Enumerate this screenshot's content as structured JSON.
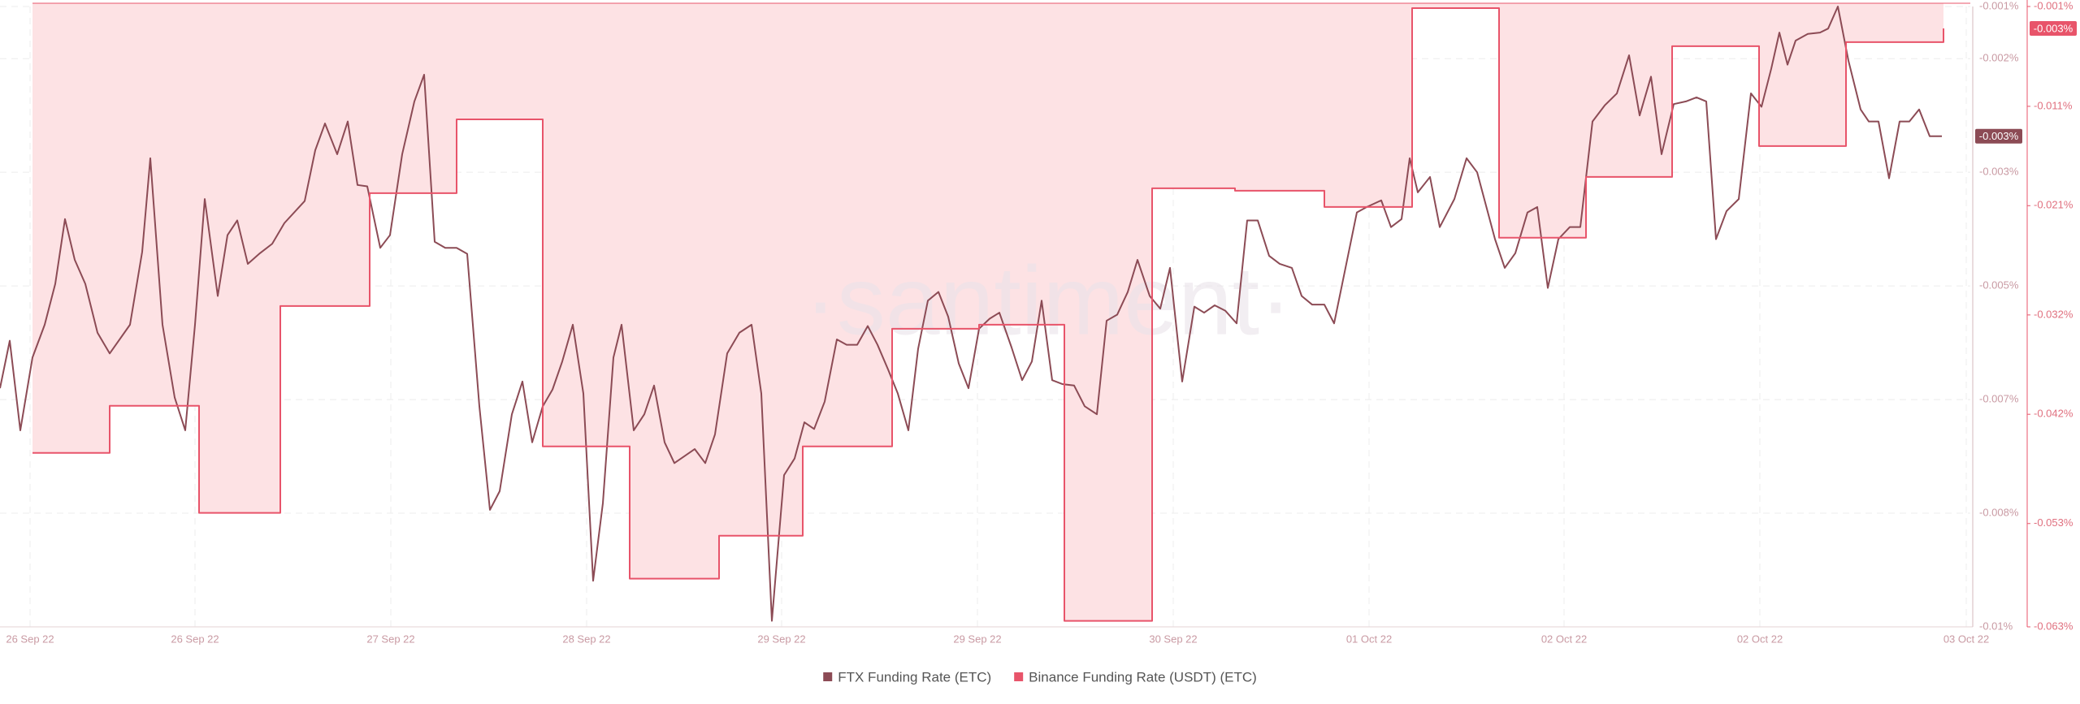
{
  "chart_data": {
    "type": "line",
    "watermark": "·santiment·",
    "xlim": [
      0,
      121.25
    ],
    "xticks": [
      {
        "value": 1.85,
        "label": "26 Sep 22"
      },
      {
        "value": 12,
        "label": "26 Sep 22"
      },
      {
        "value": 24.05,
        "label": "27 Sep 22"
      },
      {
        "value": 36.1,
        "label": "28 Sep 22"
      },
      {
        "value": 48.1,
        "label": "29 Sep 22"
      },
      {
        "value": 60.15,
        "label": "29 Sep 22"
      },
      {
        "value": 72.2,
        "label": "30 Sep 22"
      },
      {
        "value": 84.25,
        "label": "01 Oct 22"
      },
      {
        "value": 96.25,
        "label": "02 Oct 22"
      },
      {
        "value": 108.3,
        "label": "02 Oct 22"
      },
      {
        "value": 121,
        "label": "03 Oct 22"
      }
    ],
    "ylim": [
      -0.01,
      -0.00072
    ],
    "yticks": [
      {
        "value": -0.01,
        "label": "-0.01%"
      },
      {
        "value": -0.0083,
        "label": "-0.008%"
      },
      {
        "value": -0.0066,
        "label": "-0.007%"
      },
      {
        "value": -0.0049,
        "label": "-0.005%"
      },
      {
        "value": -0.0032,
        "label": "-0.003%"
      },
      {
        "value": -0.0015,
        "label": "-0.002%"
      },
      {
        "value": -0.00072,
        "label": "-0.001%"
      }
    ],
    "y2lim": [
      -0.0634,
      -0.00095
    ],
    "y2ticks": [
      {
        "value": -0.0634,
        "label": "-0.063%"
      },
      {
        "value": -0.053,
        "label": "-0.053%"
      },
      {
        "value": -0.042,
        "label": "-0.042%"
      },
      {
        "value": -0.032,
        "label": "-0.032%"
      },
      {
        "value": -0.021,
        "label": "-0.021%"
      },
      {
        "value": -0.011,
        "label": "-0.011%"
      },
      {
        "value": -0.00095,
        "label": "-0.001%"
      }
    ],
    "grid": true,
    "legend": "bottom",
    "annotations": [
      {
        "value": -0.00266,
        "label": "-0.003%",
        "color": "#8c4b55"
      },
      {
        "value": -0.00316,
        "label": "-0.003%",
        "axis": "y2",
        "color": "#e8546a"
      }
    ],
    "series": [
      {
        "name": "FTX Funding Rate (ETC)",
        "color": "#8c4b55",
        "x": [
          0,
          0.6,
          1.25,
          2,
          2.75,
          3.4,
          4,
          4.6,
          5.25,
          6,
          6.75,
          8,
          8.75,
          9.25,
          10,
          10.75,
          11.4,
          12,
          12.6,
          13.4,
          14,
          14.6,
          15.25,
          16,
          16.75,
          17.5,
          18.75,
          19.4,
          20,
          20.75,
          21.4,
          22,
          22.6,
          23.4,
          24,
          24.75,
          25.5,
          26.1,
          26.75,
          27.4,
          28.1,
          28.75,
          29.5,
          30.15,
          30.75,
          31.5,
          32.15,
          32.75,
          33.4,
          34,
          34.6,
          35.25,
          35.9,
          36.5,
          37.1,
          37.75,
          38.25,
          39,
          39.65,
          40.25,
          40.9,
          41.5,
          42.1,
          42.75,
          43.4,
          44,
          44.75,
          45.5,
          46.25,
          46.85,
          47.5,
          48.25,
          48.9,
          49.5,
          50.1,
          50.75,
          51.5,
          52.1,
          52.75,
          53.4,
          54,
          54.65,
          55.25,
          55.9,
          56.5,
          57.1,
          57.75,
          58.35,
          59,
          59.6,
          60.25,
          60.9,
          61.5,
          62.25,
          62.9,
          63.5,
          64.1,
          64.75,
          65.4,
          66.1,
          66.75,
          67.5,
          68.1,
          68.75,
          69.4,
          70,
          70.75,
          71.4,
          72,
          72.75,
          73.5,
          74.1,
          74.75,
          75.4,
          76.1,
          76.75,
          77.4,
          78.1,
          78.75,
          79.5,
          80.1,
          80.75,
          81.5,
          82.1,
          83.5,
          84.1,
          85,
          85.6,
          86.25,
          86.75,
          87.25,
          88,
          88.6,
          89.5,
          90.25,
          90.9,
          92,
          92.6,
          93.25,
          94,
          94.6,
          95.25,
          95.9,
          96.6,
          97.25,
          98,
          98.75,
          99.5,
          100.25,
          100.9,
          101.6,
          102.25,
          103,
          103.75,
          104.4,
          105,
          105.6,
          106.25,
          107,
          107.75,
          108.4,
          109,
          109.5,
          110,
          110.5,
          111.25,
          112,
          112.5,
          113.1,
          113.75,
          114.5,
          115,
          115.6,
          116.25,
          116.9,
          117.5,
          118.1,
          118.75,
          119.5
        ],
        "values": [
          -0.00643,
          -0.00572,
          -0.00706,
          -0.00597,
          -0.00548,
          -0.00487,
          -0.0039,
          -0.00451,
          -0.00487,
          -0.0056,
          -0.00591,
          -0.00548,
          -0.00439,
          -0.00299,
          -0.00548,
          -0.00657,
          -0.00706,
          -0.00548,
          -0.0036,
          -0.00505,
          -0.00414,
          -0.00392,
          -0.00457,
          -0.00441,
          -0.00427,
          -0.00396,
          -0.00363,
          -0.00287,
          -0.00247,
          -0.00293,
          -0.00244,
          -0.00339,
          -0.00341,
          -0.00433,
          -0.00414,
          -0.00293,
          -0.00214,
          -0.00174,
          -0.00424,
          -0.00433,
          -0.00433,
          -0.00442,
          -0.0067,
          -0.00825,
          -0.00797,
          -0.00682,
          -0.00633,
          -0.00724,
          -0.0067,
          -0.00645,
          -0.00603,
          -0.00548,
          -0.00651,
          -0.00931,
          -0.00815,
          -0.00597,
          -0.00548,
          -0.00706,
          -0.00682,
          -0.00639,
          -0.00724,
          -0.00755,
          -0.00745,
          -0.00734,
          -0.00755,
          -0.00712,
          -0.00591,
          -0.0056,
          -0.00548,
          -0.00651,
          -0.00991,
          -0.00773,
          -0.00748,
          -0.00694,
          -0.00704,
          -0.00663,
          -0.0057,
          -0.00578,
          -0.00578,
          -0.0055,
          -0.00578,
          -0.00615,
          -0.00651,
          -0.00706,
          -0.00584,
          -0.00512,
          -0.00499,
          -0.00536,
          -0.00606,
          -0.00643,
          -0.00554,
          -0.00539,
          -0.0053,
          -0.00582,
          -0.00631,
          -0.00603,
          -0.00512,
          -0.00631,
          -0.00637,
          -0.00639,
          -0.0067,
          -0.00682,
          -0.00542,
          -0.00533,
          -0.00499,
          -0.00451,
          -0.00505,
          -0.00524,
          -0.00463,
          -0.00633,
          -0.00521,
          -0.0053,
          -0.00519,
          -0.00527,
          -0.00546,
          -0.00392,
          -0.00392,
          -0.00445,
          -0.00457,
          -0.00463,
          -0.00505,
          -0.00518,
          -0.00518,
          -0.00546,
          -0.0038,
          -0.00372,
          -0.00362,
          -0.00402,
          -0.0039,
          -0.00299,
          -0.0035,
          -0.00327,
          -0.00402,
          -0.0036,
          -0.00299,
          -0.0032,
          -0.0042,
          -0.00463,
          -0.00441,
          -0.0038,
          -0.00372,
          -0.00493,
          -0.0042,
          -0.00402,
          -0.00402,
          -0.00244,
          -0.0022,
          -0.00202,
          -0.00145,
          -0.00235,
          -0.00177,
          -0.00293,
          -0.00218,
          -0.00214,
          -0.00208,
          -0.00214,
          -0.0042,
          -0.00378,
          -0.0036,
          -0.00202,
          -0.00222,
          -0.00165,
          -0.00111,
          -0.00159,
          -0.00123,
          -0.00113,
          -0.00111,
          -0.00105,
          -0.00072,
          -0.00153,
          -0.00226,
          -0.00244,
          -0.00244,
          -0.00329,
          -0.00244,
          -0.00244,
          -0.00226,
          -0.00266,
          -0.00266
        ]
      },
      {
        "name": "Binance Funding Rate (USDT) (ETC)",
        "color": "#e8546a",
        "axis": "y2",
        "step": true,
        "fill": "#fde2e4",
        "x": [
          2,
          6.75,
          12.25,
          17.25,
          22.75,
          28.1,
          33.4,
          38.75,
          44.25,
          49.4,
          54.9,
          60.25,
          65.5,
          70.9,
          76,
          81.5,
          86.9,
          92.25,
          97.6,
          102.9,
          108.25,
          113.6,
          119.6
        ],
        "values": [
          -0.04589,
          -0.04115,
          -0.05193,
          -0.0311,
          -0.01974,
          -0.01231,
          -0.04523,
          -0.05855,
          -0.05422,
          -0.04523,
          -0.03339,
          -0.03298,
          -0.0628,
          -0.01925,
          -0.0195,
          -0.02113,
          -0.00111,
          -0.02423,
          -0.01811,
          -0.00495,
          -0.015,
          -0.00454,
          -0.00316
        ]
      }
    ]
  }
}
